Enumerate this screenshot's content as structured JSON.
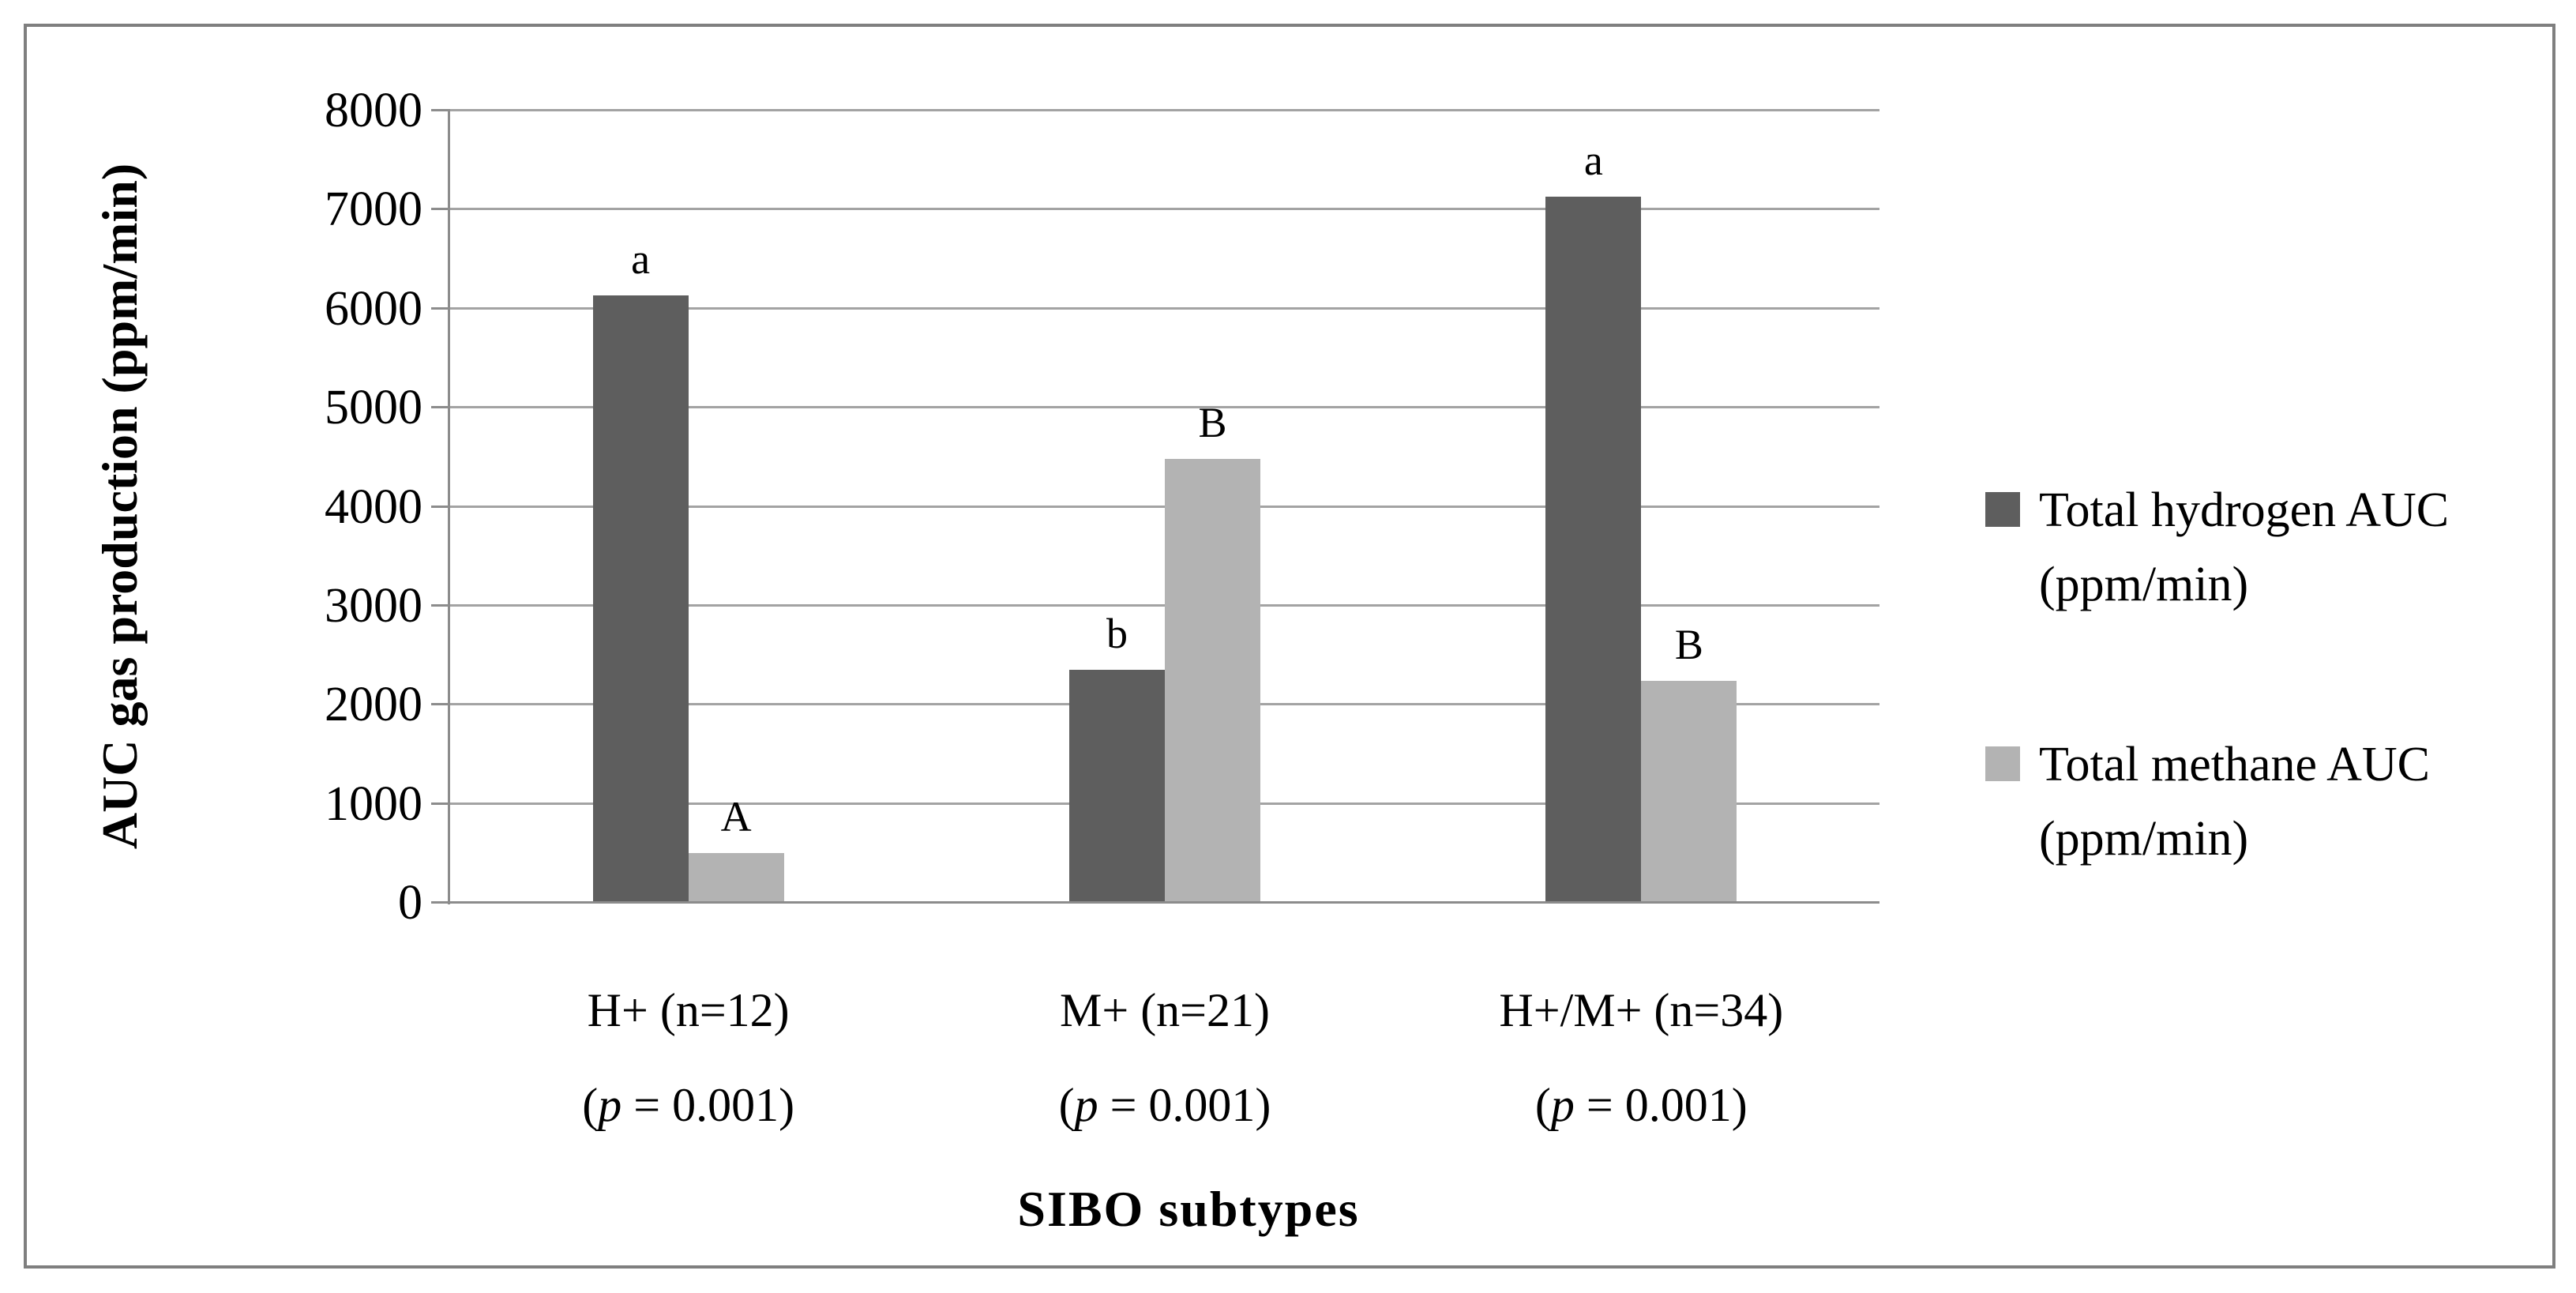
{
  "figure": {
    "border_color": "#7f7f7f",
    "background_color": "#ffffff"
  },
  "chart_data": {
    "type": "bar",
    "title": "",
    "xlabel": "SIBO subtypes",
    "ylabel": "AUC gas production (ppm/min)",
    "ylim": [
      0,
      8000
    ],
    "yticks": [
      0,
      1000,
      2000,
      3000,
      4000,
      5000,
      6000,
      7000,
      8000
    ],
    "grid": "horizontal",
    "legend_position": "right",
    "gridline_color": "#a3a3a3",
    "axis_color": "#8c8c8c",
    "categories": [
      {
        "line1": "H+ (n=12)",
        "p_label": {
          "pre": "(",
          "italic": "p",
          "post": " = 0.001)"
        }
      },
      {
        "line1": "M+ (n=21)",
        "p_label": {
          "pre": "(",
          "italic": "p",
          "post": " = 0.001)"
        }
      },
      {
        "line1": "H+/M+ (n=34)",
        "p_label": {
          "pre": "(",
          "italic": "p",
          "post": " = 0.001)"
        }
      }
    ],
    "series": [
      {
        "name": "Total hydrogen AUC (ppm/min)",
        "legend_lines": [
          "Total hydrogen AUC",
          "(ppm/min)"
        ],
        "color": "#5e5e5e",
        "values": [
          6130,
          2350,
          7130
        ],
        "bar_labels": [
          "a",
          "b",
          "a"
        ]
      },
      {
        "name": "Total methane AUC (ppm/min)",
        "legend_lines": [
          "Total methane AUC",
          "(ppm/min)"
        ],
        "color": "#b3b3b3",
        "values": [
          505,
          4480,
          2240
        ],
        "bar_labels": [
          "A",
          "B",
          "B"
        ]
      }
    ]
  }
}
